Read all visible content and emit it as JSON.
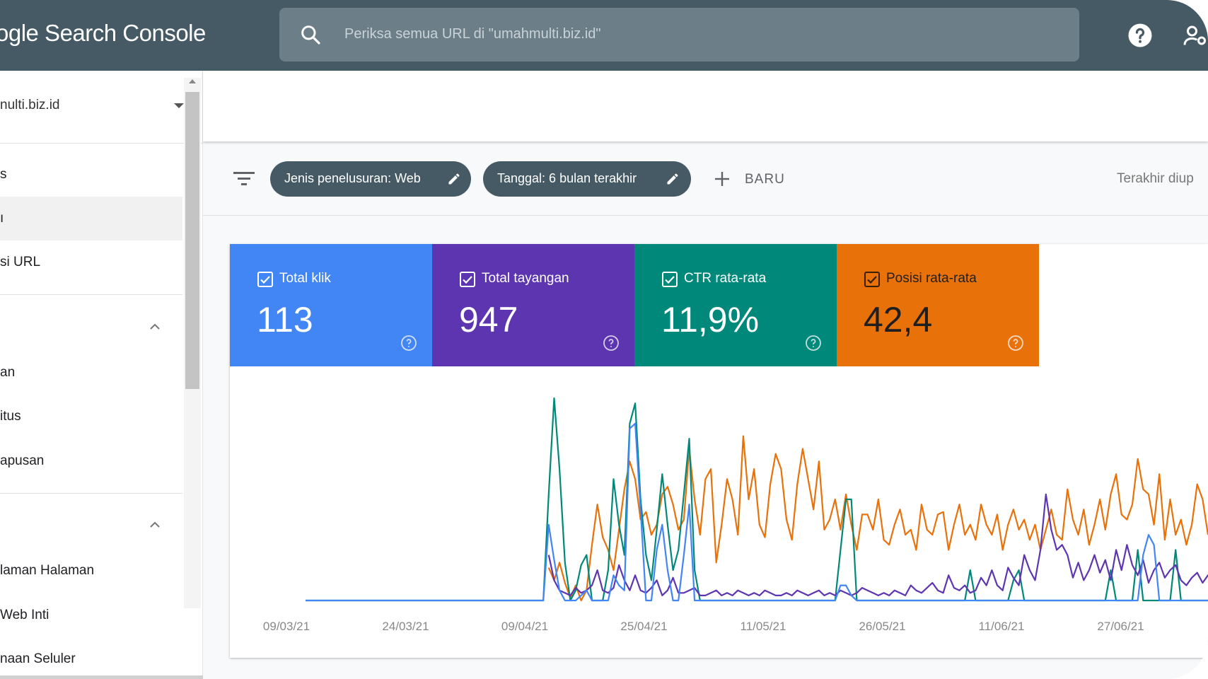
{
  "app": {
    "title": "ogle Search Console"
  },
  "search": {
    "placeholder": "Periksa semua URL di \"umahmulti.biz.id\""
  },
  "sidebar": {
    "property": "nulti.biz.id",
    "items": [
      "s",
      "ı",
      "si URL"
    ],
    "section1_items": [
      "an",
      "itus",
      "apusan"
    ],
    "section2_items": [
      "laman Halaman",
      "Web Inti",
      "naan Seluler"
    ]
  },
  "toolbar": {
    "chip_search_type": "Jenis penelusuran: Web",
    "chip_date": "Tanggal: 6 bulan terakhir",
    "new_label": "BARU",
    "updated": "Terakhir diup"
  },
  "metrics": [
    {
      "label": "Total klik",
      "value": "113",
      "color": "#4285f4"
    },
    {
      "label": "Total tayangan",
      "value": "947",
      "color": "#5e35b1"
    },
    {
      "label": "CTR rata-rata",
      "value": "11,9%",
      "color": "#00897b"
    },
    {
      "label": "Posisi rata-rata",
      "value": "42,4",
      "color": "#e8710a"
    }
  ],
  "chart_data": {
    "type": "line",
    "x_ticks": [
      "09/03/21",
      "24/03/21",
      "09/04/21",
      "25/04/21",
      "11/05/21",
      "26/05/21",
      "11/06/21",
      "27/06/21"
    ],
    "grid": false,
    "series": [
      {
        "color": "#e8710a",
        "values": [
          null,
          null,
          null,
          null,
          null,
          null,
          null,
          null,
          null,
          null,
          null,
          null,
          null,
          null,
          null,
          null,
          null,
          null,
          null,
          null,
          null,
          null,
          null,
          null,
          null,
          null,
          null,
          null,
          null,
          null,
          null,
          null,
          null,
          null,
          null,
          null,
          null,
          null,
          null,
          null,
          null,
          null,
          null,
          null,
          null,
          13,
          8,
          15,
          7,
          1,
          6,
          0,
          4,
          22,
          38,
          25,
          20,
          12,
          28,
          44,
          55,
          48,
          32,
          35,
          26,
          30,
          42,
          45,
          38,
          28,
          32,
          60,
          40,
          26,
          48,
          52,
          15,
          30,
          48,
          40,
          26,
          65,
          40,
          52,
          30,
          25,
          46,
          58,
          52,
          32,
          24,
          46,
          60,
          48,
          36,
          55,
          28,
          32,
          40,
          28,
          42,
          30,
          20,
          34,
          34,
          28,
          40,
          24,
          22,
          30,
          36,
          26,
          28,
          20,
          38,
          28,
          26,
          34,
          35,
          20,
          30,
          38,
          26,
          30,
          24,
          38,
          30,
          26,
          34,
          20,
          30,
          36,
          28,
          32,
          24,
          30,
          20,
          28,
          36,
          26,
          24,
          44,
          32,
          26,
          36,
          22,
          30,
          40,
          28,
          42,
          50,
          34,
          32,
          38,
          56,
          44,
          42,
          30,
          50,
          24,
          40,
          26,
          32,
          22,
          30,
          46,
          40,
          26
        ]
      },
      {
        "color": "#00897b",
        "values": [
          0,
          0,
          0,
          0,
          0,
          0,
          0,
          0,
          0,
          0,
          0,
          0,
          0,
          0,
          0,
          0,
          0,
          0,
          0,
          0,
          0,
          0,
          0,
          0,
          0,
          0,
          0,
          0,
          0,
          0,
          0,
          0,
          0,
          0,
          0,
          0,
          0,
          0,
          0,
          0,
          0,
          0,
          0,
          0,
          0,
          42,
          80,
          52,
          15,
          0,
          4,
          14,
          18,
          0,
          0,
          0,
          12,
          48,
          30,
          18,
          70,
          78,
          40,
          18,
          8,
          28,
          50,
          30,
          12,
          20,
          42,
          64,
          12,
          0,
          0,
          0,
          0,
          0,
          0,
          0,
          0,
          0,
          0,
          0,
          0,
          0,
          0,
          0,
          0,
          0,
          0,
          0,
          0,
          0,
          0,
          0,
          0,
          0,
          0,
          20,
          40,
          40,
          0,
          0,
          0,
          0,
          0,
          0,
          0,
          0,
          0,
          0,
          0,
          0,
          0,
          0,
          0,
          0,
          0,
          0,
          0,
          0,
          0,
          12,
          0,
          0,
          0,
          0,
          0,
          0,
          0,
          8,
          12,
          0,
          0,
          0,
          0,
          0,
          0,
          0,
          0,
          0,
          0,
          0,
          0,
          0,
          0,
          0,
          0,
          12,
          0,
          0,
          0,
          0,
          20,
          0,
          0,
          0,
          0,
          0,
          0,
          20,
          0,
          0,
          0,
          0,
          0,
          0,
          0,
          0,
          0,
          12,
          0,
          0,
          0,
          0,
          0,
          24,
          0,
          0,
          0,
          16,
          0,
          0,
          0,
          0,
          0,
          0,
          0,
          0
        ]
      },
      {
        "color": "#5e35b1",
        "values": [
          null,
          null,
          null,
          null,
          null,
          null,
          null,
          null,
          null,
          null,
          null,
          null,
          null,
          null,
          null,
          null,
          null,
          null,
          null,
          null,
          null,
          null,
          null,
          null,
          null,
          null,
          null,
          null,
          null,
          null,
          null,
          null,
          null,
          null,
          null,
          null,
          null,
          null,
          null,
          null,
          null,
          null,
          null,
          null,
          null,
          18,
          8,
          4,
          3,
          2,
          5,
          3,
          4,
          6,
          12,
          4,
          3,
          5,
          14,
          8,
          4,
          10,
          4,
          3,
          5,
          8,
          2,
          4,
          9,
          3,
          3,
          4,
          5,
          2,
          2,
          3,
          4,
          2,
          3,
          2,
          4,
          3,
          2,
          3,
          2,
          4,
          3,
          2,
          2,
          3,
          2,
          4,
          3,
          2,
          3,
          4,
          2,
          3,
          2,
          4,
          3,
          2,
          3,
          5,
          4,
          3,
          2,
          3,
          2,
          4,
          3,
          2,
          6,
          4,
          3,
          5,
          7,
          4,
          3,
          10,
          5,
          4,
          6,
          3,
          4,
          9,
          6,
          12,
          6,
          4,
          13,
          9,
          6,
          18,
          12,
          8,
          20,
          42,
          28,
          20,
          22,
          18,
          9,
          15,
          8,
          12,
          18,
          11,
          16,
          8,
          20,
          12,
          22,
          14,
          10,
          16,
          7,
          12,
          15,
          9,
          12,
          14,
          8,
          6,
          9,
          11,
          7,
          10,
          8,
          6,
          9,
          7,
          12,
          9,
          7,
          10,
          8,
          12,
          7,
          14,
          9,
          8,
          12,
          6,
          10,
          8,
          14,
          10,
          9,
          7,
          12,
          6,
          10
        ]
      },
      {
        "color": "#4285f4",
        "values": [
          0,
          0,
          0,
          0,
          0,
          0,
          0,
          0,
          0,
          0,
          0,
          0,
          0,
          0,
          0,
          0,
          0,
          0,
          0,
          0,
          0,
          0,
          0,
          0,
          0,
          0,
          0,
          0,
          0,
          0,
          0,
          0,
          0,
          0,
          0,
          0,
          0,
          0,
          0,
          0,
          0,
          0,
          0,
          0,
          0,
          30,
          16,
          4,
          0,
          0,
          0,
          2,
          4,
          0,
          0,
          0,
          0,
          10,
          6,
          4,
          68,
          70,
          36,
          0,
          0,
          20,
          30,
          12,
          0,
          0,
          18,
          38,
          0,
          0,
          0,
          0,
          0,
          0,
          0,
          0,
          0,
          0,
          0,
          0,
          0,
          0,
          0,
          0,
          0,
          0,
          0,
          0,
          0,
          0,
          0,
          0,
          0,
          0,
          0,
          6,
          6,
          2,
          0,
          0,
          0,
          0,
          0,
          0,
          0,
          0,
          0,
          0,
          0,
          0,
          0,
          0,
          0,
          0,
          0,
          0,
          0,
          0,
          0,
          0,
          0,
          0,
          0,
          0,
          0,
          0,
          0,
          0,
          0,
          0,
          0,
          0,
          0,
          0,
          0,
          0,
          0,
          0,
          0,
          0,
          0,
          0,
          0,
          0,
          0,
          0,
          0,
          0,
          0,
          0,
          0,
          18,
          26,
          22,
          0,
          0,
          0,
          0,
          0,
          0,
          0,
          0,
          0,
          0,
          0,
          0,
          0,
          0,
          0,
          0,
          0,
          0,
          0,
          0,
          0,
          0,
          0,
          0,
          0,
          0,
          0,
          0,
          0,
          0,
          0,
          0,
          0,
          0,
          0,
          0,
          0,
          0,
          0,
          0
        ]
      }
    ]
  }
}
